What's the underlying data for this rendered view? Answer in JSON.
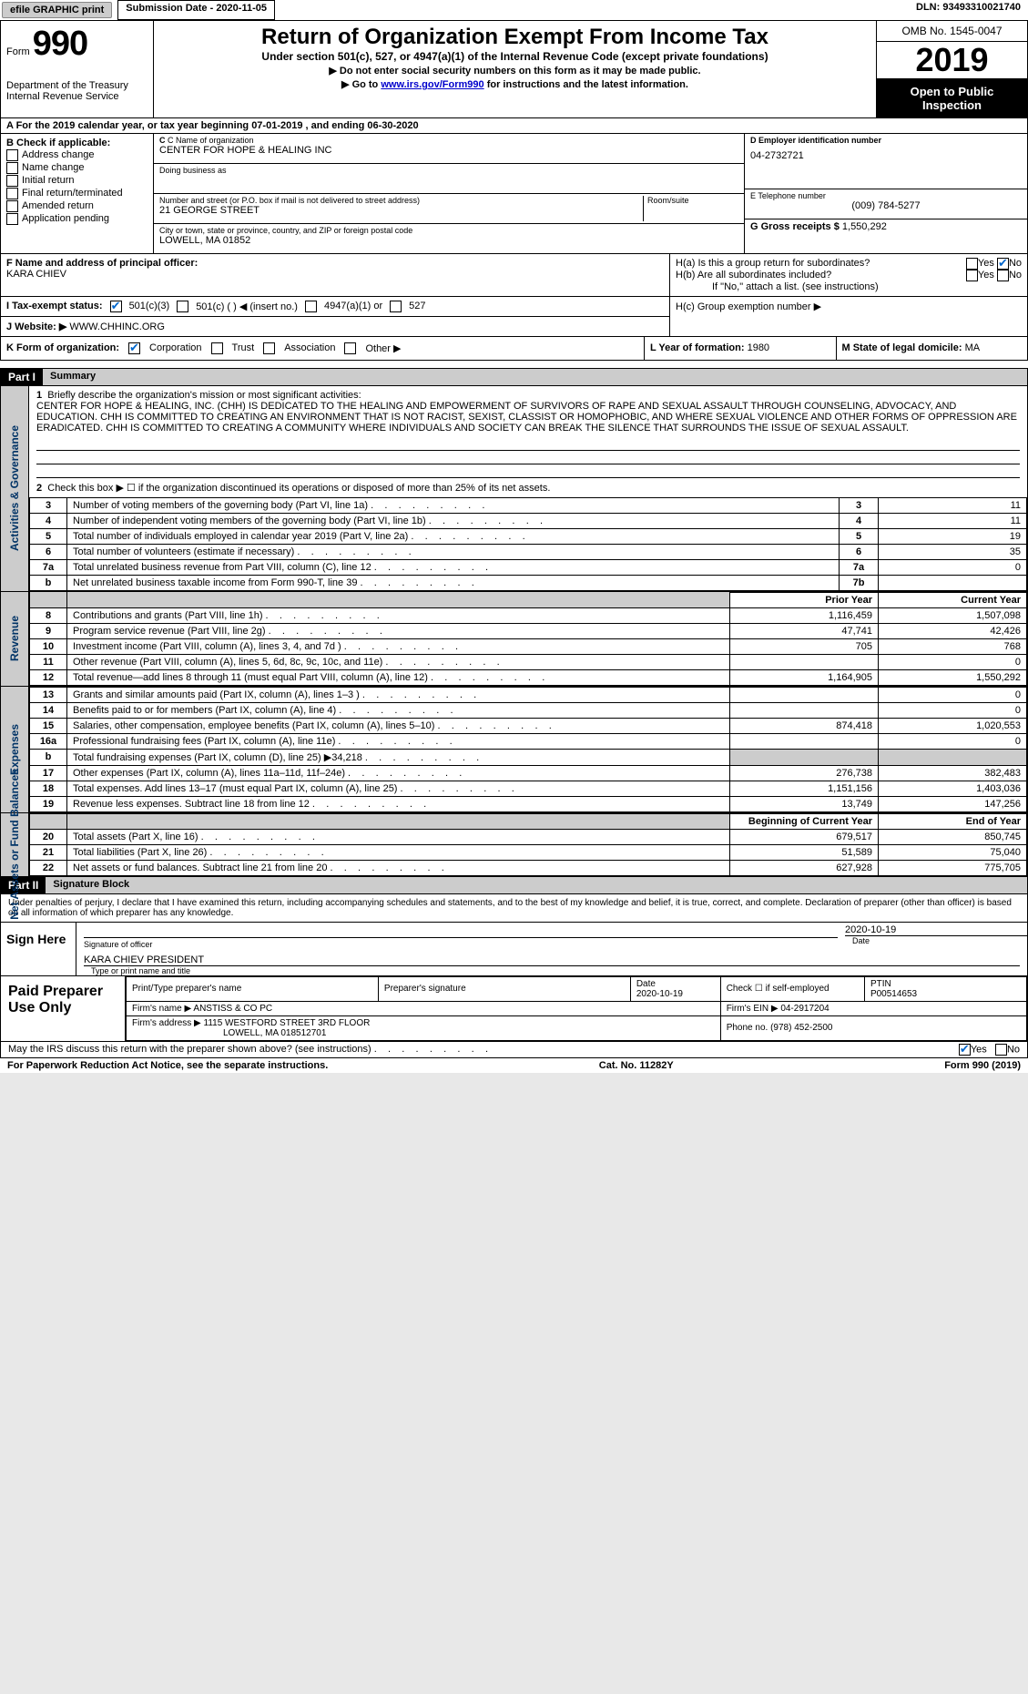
{
  "topbar": {
    "efile": "efile GRAPHIC print",
    "submission": "Submission Date - 2020-11-05",
    "dln": "DLN: 93493310021740"
  },
  "header": {
    "form_prefix": "Form",
    "form_number": "990",
    "dept": "Department of the Treasury\nInternal Revenue Service",
    "title": "Return of Organization Exempt From Income Tax",
    "subtitle": "Under section 501(c), 527, or 4947(a)(1) of the Internal Revenue Code (except private foundations)",
    "instr1": "▶ Do not enter social security numbers on this form as it may be made public.",
    "instr2_pre": "▶ Go to ",
    "instr2_link": "www.irs.gov/Form990",
    "instr2_post": " for instructions and the latest information.",
    "omb": "OMB No. 1545-0047",
    "year": "2019",
    "open": "Open to Public Inspection"
  },
  "section_a": "A   For the 2019 calendar year, or tax year beginning 07-01-2019    , and ending 06-30-2020",
  "section_b": {
    "heading": "B Check if applicable:",
    "opts": [
      "Address change",
      "Name change",
      "Initial return",
      "Final return/terminated",
      "Amended return",
      "Application pending"
    ]
  },
  "section_c": {
    "name_label": "C Name of organization",
    "name": "CENTER FOR HOPE & HEALING INC",
    "dba_label": "Doing business as",
    "dba": "",
    "street_label": "Number and street (or P.O. box if mail is not delivered to street address)",
    "street": "21 GEORGE STREET",
    "room_label": "Room/suite",
    "city_label": "City or town, state or province, country, and ZIP or foreign postal code",
    "city": "LOWELL, MA  01852"
  },
  "section_d": {
    "label": "D Employer identification number",
    "ein": "04-2732721"
  },
  "section_e": {
    "label": "E Telephone number",
    "phone": "(009) 784-5277"
  },
  "section_g": {
    "label": "G Gross receipts $",
    "value": "1,550,292"
  },
  "section_f": {
    "label": "F Name and address of principal officer:",
    "name": "KARA CHIEV"
  },
  "section_h": {
    "ha": "H(a)  Is this a group return for subordinates?",
    "hb": "H(b)  Are all subordinates included?",
    "hb_note": "If \"No,\" attach a list. (see instructions)",
    "hc": "H(c)  Group exemption number ▶",
    "yes": "Yes",
    "no": "No"
  },
  "section_i": {
    "label": "I    Tax-exempt status:",
    "o1": "501(c)(3)",
    "o2": "501(c) (  ) ◀ (insert no.)",
    "o3": "4947(a)(1) or",
    "o4": "527"
  },
  "section_j": {
    "label": "J   Website: ▶",
    "value": "WWW.CHHINC.ORG"
  },
  "section_k": {
    "label": "K Form of organization:",
    "o1": "Corporation",
    "o2": "Trust",
    "o3": "Association",
    "o4": "Other ▶"
  },
  "section_l": {
    "label": "L Year of formation:",
    "value": "1980"
  },
  "section_m": {
    "label": "M State of legal domicile:",
    "value": "MA"
  },
  "part1": {
    "header": "Part I",
    "title": "Summary",
    "line1_label": "Briefly describe the organization's mission or most significant activities:",
    "mission": "CENTER FOR HOPE & HEALING, INC. (CHH) IS DEDICATED TO THE HEALING AND EMPOWERMENT OF SURVIVORS OF RAPE AND SEXUAL ASSAULT THROUGH COUNSELING, ADVOCACY, AND EDUCATION. CHH IS COMMITTED TO CREATING AN ENVIRONMENT THAT IS NOT RACIST, SEXIST, CLASSIST OR HOMOPHOBIC, AND WHERE SEXUAL VIOLENCE AND OTHER FORMS OF OPPRESSION ARE ERADICATED. CHH IS COMMITTED TO CREATING A COMMUNITY WHERE INDIVIDUALS AND SOCIETY CAN BREAK THE SILENCE THAT SURROUNDS THE ISSUE OF SEXUAL ASSAULT.",
    "line2": "Check this box ▶ ☐ if the organization discontinued its operations or disposed of more than 25% of its net assets.",
    "gov_side": "Activities & Governance",
    "rev_side": "Revenue",
    "exp_side": "Expenses",
    "net_side": "Net Assets or Fund Balances",
    "rows_gov": [
      {
        "n": "3",
        "d": "Number of voting members of the governing body (Part VI, line 1a)",
        "b": "3",
        "v": "11"
      },
      {
        "n": "4",
        "d": "Number of independent voting members of the governing body (Part VI, line 1b)",
        "b": "4",
        "v": "11"
      },
      {
        "n": "5",
        "d": "Total number of individuals employed in calendar year 2019 (Part V, line 2a)",
        "b": "5",
        "v": "19"
      },
      {
        "n": "6",
        "d": "Total number of volunteers (estimate if necessary)",
        "b": "6",
        "v": "35"
      },
      {
        "n": "7a",
        "d": "Total unrelated business revenue from Part VIII, column (C), line 12",
        "b": "7a",
        "v": "0"
      },
      {
        "n": "b",
        "d": "Net unrelated business taxable income from Form 990-T, line 39",
        "b": "7b",
        "v": ""
      }
    ],
    "col_prior": "Prior Year",
    "col_current": "Current Year",
    "rows_rev": [
      {
        "n": "8",
        "d": "Contributions and grants (Part VIII, line 1h)",
        "p": "1,116,459",
        "c": "1,507,098"
      },
      {
        "n": "9",
        "d": "Program service revenue (Part VIII, line 2g)",
        "p": "47,741",
        "c": "42,426"
      },
      {
        "n": "10",
        "d": "Investment income (Part VIII, column (A), lines 3, 4, and 7d )",
        "p": "705",
        "c": "768"
      },
      {
        "n": "11",
        "d": "Other revenue (Part VIII, column (A), lines 5, 6d, 8c, 9c, 10c, and 11e)",
        "p": "",
        "c": "0"
      },
      {
        "n": "12",
        "d": "Total revenue—add lines 8 through 11 (must equal Part VIII, column (A), line 12)",
        "p": "1,164,905",
        "c": "1,550,292"
      }
    ],
    "rows_exp": [
      {
        "n": "13",
        "d": "Grants and similar amounts paid (Part IX, column (A), lines 1–3 )",
        "p": "",
        "c": "0"
      },
      {
        "n": "14",
        "d": "Benefits paid to or for members (Part IX, column (A), line 4)",
        "p": "",
        "c": "0"
      },
      {
        "n": "15",
        "d": "Salaries, other compensation, employee benefits (Part IX, column (A), lines 5–10)",
        "p": "874,418",
        "c": "1,020,553"
      },
      {
        "n": "16a",
        "d": "Professional fundraising fees (Part IX, column (A), line 11e)",
        "p": "",
        "c": "0"
      },
      {
        "n": "b",
        "d": "Total fundraising expenses (Part IX, column (D), line 25) ▶34,218",
        "p": "grey",
        "c": "grey"
      },
      {
        "n": "17",
        "d": "Other expenses (Part IX, column (A), lines 11a–11d, 11f–24e)",
        "p": "276,738",
        "c": "382,483"
      },
      {
        "n": "18",
        "d": "Total expenses. Add lines 13–17 (must equal Part IX, column (A), line 25)",
        "p": "1,151,156",
        "c": "1,403,036"
      },
      {
        "n": "19",
        "d": "Revenue less expenses. Subtract line 18 from line 12",
        "p": "13,749",
        "c": "147,256"
      }
    ],
    "col_begin": "Beginning of Current Year",
    "col_end": "End of Year",
    "rows_net": [
      {
        "n": "20",
        "d": "Total assets (Part X, line 16)",
        "p": "679,517",
        "c": "850,745"
      },
      {
        "n": "21",
        "d": "Total liabilities (Part X, line 26)",
        "p": "51,589",
        "c": "75,040"
      },
      {
        "n": "22",
        "d": "Net assets or fund balances. Subtract line 21 from line 20",
        "p": "627,928",
        "c": "775,705"
      }
    ]
  },
  "part2": {
    "header": "Part II",
    "title": "Signature Block",
    "perjury": "Under penalties of perjury, I declare that I have examined this return, including accompanying schedules and statements, and to the best of my knowledge and belief, it is true, correct, and complete. Declaration of preparer (other than officer) is based on all information of which preparer has any knowledge.",
    "sign_here": "Sign Here",
    "sig_officer": "Signature of officer",
    "date": "Date",
    "date_val": "2020-10-19",
    "name_title": "KARA CHIEV PRESIDENT",
    "name_label": "Type or print name and title"
  },
  "preparer": {
    "heading": "Paid Preparer Use Only",
    "h1": "Print/Type preparer's name",
    "h2": "Preparer's signature",
    "h3": "Date",
    "date": "2020-10-19",
    "h4": "Check ☐ if self-employed",
    "h5": "PTIN",
    "ptin": "P00514653",
    "firm_name_label": "Firm's name    ▶",
    "firm_name": "ANSTISS & CO PC",
    "firm_ein_label": "Firm's EIN ▶",
    "firm_ein": "04-2917204",
    "firm_addr_label": "Firm's address ▶",
    "firm_addr": "1115 WESTFORD STREET 3RD FLOOR",
    "firm_city": "LOWELL, MA  018512701",
    "phone_label": "Phone no.",
    "phone": "(978) 452-2500"
  },
  "footer": {
    "discuss": "May the IRS discuss this return with the preparer shown above? (see instructions)",
    "yes": "Yes",
    "no": "No",
    "paperwork": "For Paperwork Reduction Act Notice, see the separate instructions.",
    "cat": "Cat. No. 11282Y",
    "form": "Form 990 (2019)"
  }
}
